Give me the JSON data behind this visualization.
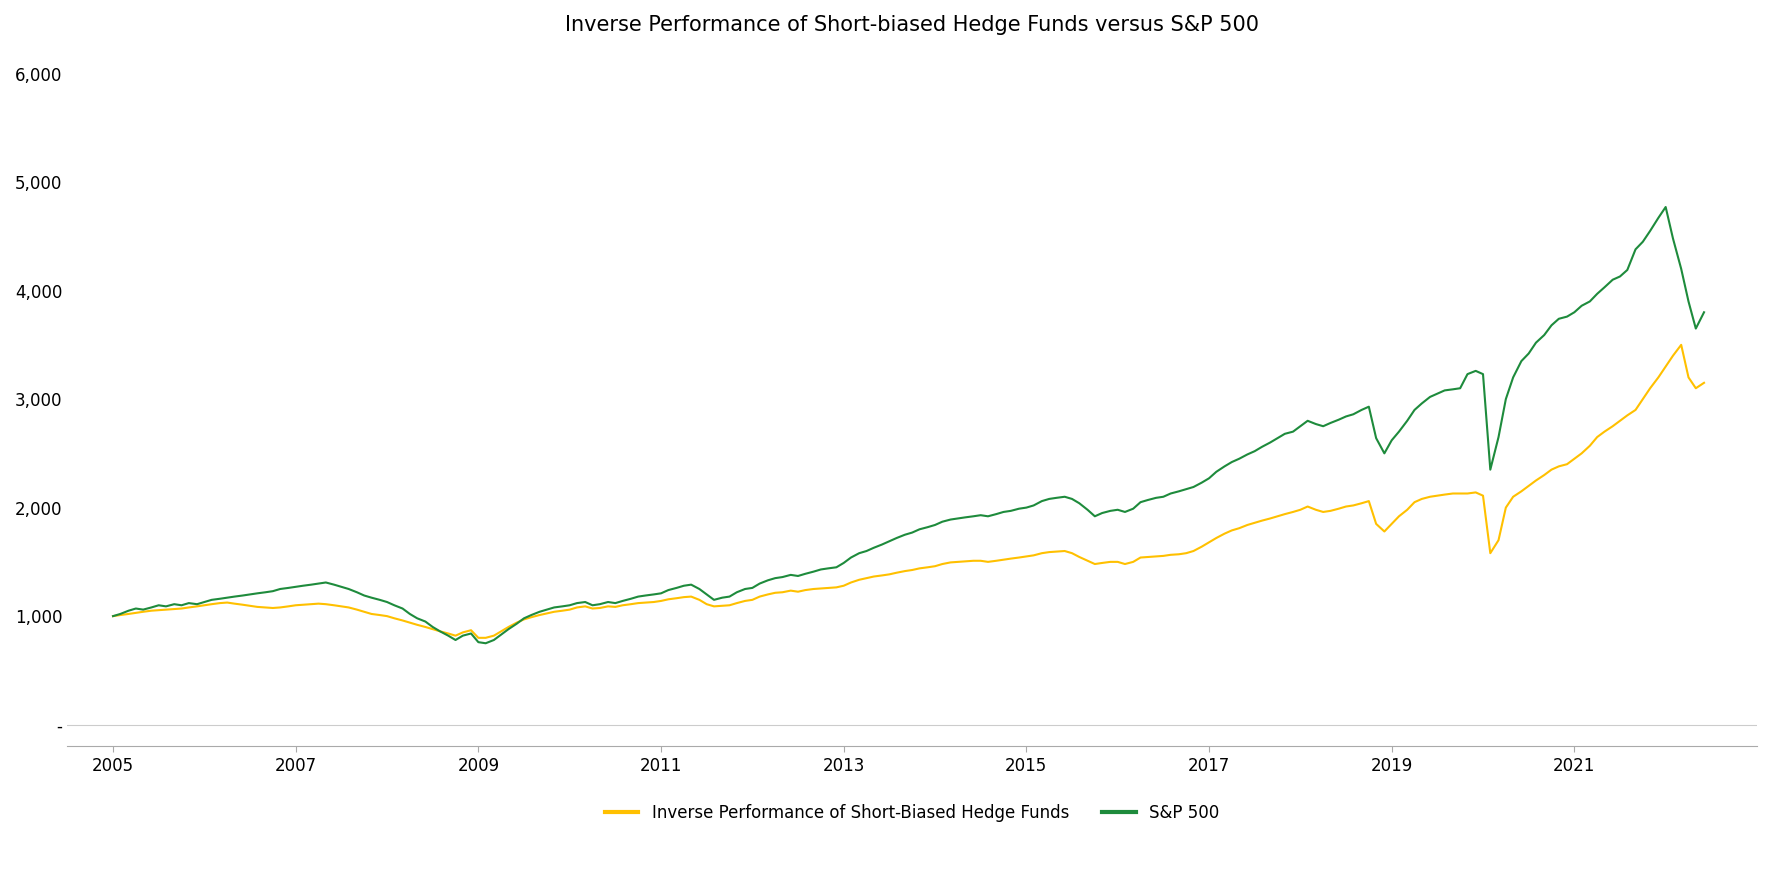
{
  "title": "Inverse Performance of Short-biased Hedge Funds versus S&P 500",
  "title_fontsize": 15,
  "line_color_hedge": "#FFC000",
  "line_color_sp500": "#1E8B3C",
  "background_color": "#FFFFFF",
  "ylim": [
    -200,
    6200
  ],
  "yticks": [
    0,
    1000,
    2000,
    3000,
    4000,
    5000,
    6000
  ],
  "ytick_labels": [
    "-",
    "1,000",
    "2,000",
    "3,000",
    "4,000",
    "5,000",
    "6,000"
  ],
  "xtick_years": [
    2005,
    2007,
    2009,
    2011,
    2013,
    2015,
    2017,
    2019,
    2021
  ],
  "legend_labels": [
    "Inverse Performance of Short-Biased Hedge Funds",
    "S&P 500"
  ],
  "sp500_x": [
    2005.0,
    2005.08,
    2005.17,
    2005.25,
    2005.33,
    2005.42,
    2005.5,
    2005.58,
    2005.67,
    2005.75,
    2005.83,
    2005.92,
    2006.0,
    2006.08,
    2006.17,
    2006.25,
    2006.33,
    2006.42,
    2006.5,
    2006.58,
    2006.67,
    2006.75,
    2006.83,
    2006.92,
    2007.0,
    2007.08,
    2007.17,
    2007.25,
    2007.33,
    2007.42,
    2007.5,
    2007.58,
    2007.67,
    2007.75,
    2007.83,
    2007.92,
    2008.0,
    2008.08,
    2008.17,
    2008.25,
    2008.33,
    2008.42,
    2008.5,
    2008.58,
    2008.67,
    2008.75,
    2008.83,
    2008.92,
    2009.0,
    2009.08,
    2009.17,
    2009.25,
    2009.33,
    2009.42,
    2009.5,
    2009.58,
    2009.67,
    2009.75,
    2009.83,
    2009.92,
    2010.0,
    2010.08,
    2010.17,
    2010.25,
    2010.33,
    2010.42,
    2010.5,
    2010.58,
    2010.67,
    2010.75,
    2010.83,
    2010.92,
    2011.0,
    2011.08,
    2011.17,
    2011.25,
    2011.33,
    2011.42,
    2011.5,
    2011.58,
    2011.67,
    2011.75,
    2011.83,
    2011.92,
    2012.0,
    2012.08,
    2012.17,
    2012.25,
    2012.33,
    2012.42,
    2012.5,
    2012.58,
    2012.67,
    2012.75,
    2012.83,
    2012.92,
    2013.0,
    2013.08,
    2013.17,
    2013.25,
    2013.33,
    2013.42,
    2013.5,
    2013.58,
    2013.67,
    2013.75,
    2013.83,
    2013.92,
    2014.0,
    2014.08,
    2014.17,
    2014.25,
    2014.33,
    2014.42,
    2014.5,
    2014.58,
    2014.67,
    2014.75,
    2014.83,
    2014.92,
    2015.0,
    2015.08,
    2015.17,
    2015.25,
    2015.33,
    2015.42,
    2015.5,
    2015.58,
    2015.67,
    2015.75,
    2015.83,
    2015.92,
    2016.0,
    2016.08,
    2016.17,
    2016.25,
    2016.33,
    2016.42,
    2016.5,
    2016.58,
    2016.67,
    2016.75,
    2016.83,
    2016.92,
    2017.0,
    2017.08,
    2017.17,
    2017.25,
    2017.33,
    2017.42,
    2017.5,
    2017.58,
    2017.67,
    2017.75,
    2017.83,
    2017.92,
    2018.0,
    2018.08,
    2018.17,
    2018.25,
    2018.33,
    2018.42,
    2018.5,
    2018.58,
    2018.67,
    2018.75,
    2018.83,
    2018.92,
    2019.0,
    2019.08,
    2019.17,
    2019.25,
    2019.33,
    2019.42,
    2019.5,
    2019.58,
    2019.67,
    2019.75,
    2019.83,
    2019.92,
    2020.0,
    2020.08,
    2020.17,
    2020.25,
    2020.33,
    2020.42,
    2020.5,
    2020.58,
    2020.67,
    2020.75,
    2020.83,
    2020.92,
    2021.0,
    2021.08,
    2021.17,
    2021.25,
    2021.33,
    2021.42,
    2021.5,
    2021.58,
    2021.67,
    2021.75,
    2021.83,
    2021.92,
    2022.0,
    2022.08,
    2022.17,
    2022.25,
    2022.33,
    2022.42
  ],
  "sp500_y": [
    1000,
    1020,
    1050,
    1070,
    1060,
    1080,
    1100,
    1090,
    1110,
    1100,
    1120,
    1110,
    1130,
    1150,
    1160,
    1170,
    1180,
    1190,
    1200,
    1210,
    1220,
    1230,
    1250,
    1260,
    1270,
    1280,
    1290,
    1300,
    1310,
    1290,
    1270,
    1250,
    1220,
    1190,
    1170,
    1150,
    1130,
    1100,
    1070,
    1020,
    980,
    950,
    900,
    860,
    820,
    780,
    820,
    840,
    760,
    750,
    780,
    830,
    880,
    930,
    980,
    1010,
    1040,
    1060,
    1080,
    1090,
    1100,
    1120,
    1130,
    1100,
    1110,
    1130,
    1120,
    1140,
    1160,
    1180,
    1190,
    1200,
    1210,
    1240,
    1260,
    1280,
    1290,
    1250,
    1200,
    1150,
    1170,
    1180,
    1220,
    1250,
    1260,
    1300,
    1330,
    1350,
    1360,
    1380,
    1370,
    1390,
    1410,
    1430,
    1440,
    1450,
    1490,
    1540,
    1580,
    1600,
    1630,
    1660,
    1690,
    1720,
    1750,
    1770,
    1800,
    1820,
    1840,
    1870,
    1890,
    1900,
    1910,
    1920,
    1930,
    1920,
    1940,
    1960,
    1970,
    1990,
    2000,
    2020,
    2060,
    2080,
    2090,
    2100,
    2080,
    2040,
    1980,
    1920,
    1950,
    1970,
    1980,
    1960,
    1990,
    2050,
    2070,
    2090,
    2100,
    2130,
    2150,
    2170,
    2190,
    2230,
    2270,
    2330,
    2380,
    2420,
    2450,
    2490,
    2520,
    2560,
    2600,
    2640,
    2680,
    2700,
    2750,
    2800,
    2770,
    2750,
    2780,
    2810,
    2840,
    2860,
    2900,
    2930,
    2640,
    2500,
    2620,
    2700,
    2800,
    2900,
    2960,
    3020,
    3050,
    3080,
    3090,
    3100,
    3230,
    3260,
    3230,
    2350,
    2650,
    3000,
    3200,
    3350,
    3420,
    3520,
    3590,
    3680,
    3740,
    3760,
    3800,
    3860,
    3900,
    3970,
    4030,
    4100,
    4130,
    4190,
    4380,
    4450,
    4550,
    4670,
    4770,
    4480,
    4200,
    3900,
    3650,
    3800
  ],
  "hedge_x": [
    2005.0,
    2005.08,
    2005.17,
    2005.25,
    2005.33,
    2005.42,
    2005.5,
    2005.58,
    2005.67,
    2005.75,
    2005.83,
    2005.92,
    2006.0,
    2006.08,
    2006.17,
    2006.25,
    2006.33,
    2006.42,
    2006.5,
    2006.58,
    2006.67,
    2006.75,
    2006.83,
    2006.92,
    2007.0,
    2007.08,
    2007.17,
    2007.25,
    2007.33,
    2007.42,
    2007.5,
    2007.58,
    2007.67,
    2007.75,
    2007.83,
    2007.92,
    2008.0,
    2008.08,
    2008.17,
    2008.25,
    2008.33,
    2008.42,
    2008.5,
    2008.58,
    2008.67,
    2008.75,
    2008.83,
    2008.92,
    2009.0,
    2009.08,
    2009.17,
    2009.25,
    2009.33,
    2009.42,
    2009.5,
    2009.58,
    2009.67,
    2009.75,
    2009.83,
    2009.92,
    2010.0,
    2010.08,
    2010.17,
    2010.25,
    2010.33,
    2010.42,
    2010.5,
    2010.58,
    2010.67,
    2010.75,
    2010.83,
    2010.92,
    2011.0,
    2011.08,
    2011.17,
    2011.25,
    2011.33,
    2011.42,
    2011.5,
    2011.58,
    2011.67,
    2011.75,
    2011.83,
    2011.92,
    2012.0,
    2012.08,
    2012.17,
    2012.25,
    2012.33,
    2012.42,
    2012.5,
    2012.58,
    2012.67,
    2012.75,
    2012.83,
    2012.92,
    2013.0,
    2013.08,
    2013.17,
    2013.25,
    2013.33,
    2013.42,
    2013.5,
    2013.58,
    2013.67,
    2013.75,
    2013.83,
    2013.92,
    2014.0,
    2014.08,
    2014.17,
    2014.25,
    2014.33,
    2014.42,
    2014.5,
    2014.58,
    2014.67,
    2014.75,
    2014.83,
    2014.92,
    2015.0,
    2015.08,
    2015.17,
    2015.25,
    2015.33,
    2015.42,
    2015.5,
    2015.58,
    2015.67,
    2015.75,
    2015.83,
    2015.92,
    2016.0,
    2016.08,
    2016.17,
    2016.25,
    2016.33,
    2016.42,
    2016.5,
    2016.58,
    2016.67,
    2016.75,
    2016.83,
    2016.92,
    2017.0,
    2017.08,
    2017.17,
    2017.25,
    2017.33,
    2017.42,
    2017.5,
    2017.58,
    2017.67,
    2017.75,
    2017.83,
    2017.92,
    2018.0,
    2018.08,
    2018.17,
    2018.25,
    2018.33,
    2018.42,
    2018.5,
    2018.58,
    2018.67,
    2018.75,
    2018.83,
    2018.92,
    2019.0,
    2019.08,
    2019.17,
    2019.25,
    2019.33,
    2019.42,
    2019.5,
    2019.58,
    2019.67,
    2019.75,
    2019.83,
    2019.92,
    2020.0,
    2020.08,
    2020.17,
    2020.25,
    2020.33,
    2020.42,
    2020.5,
    2020.58,
    2020.67,
    2020.75,
    2020.83,
    2020.92,
    2021.0,
    2021.08,
    2021.17,
    2021.25,
    2021.33,
    2021.42,
    2021.5,
    2021.58,
    2021.67,
    2021.75,
    2021.83,
    2021.92,
    2022.0,
    2022.08,
    2022.17,
    2022.25,
    2022.33,
    2022.42
  ],
  "hedge_y": [
    1000,
    1010,
    1020,
    1030,
    1040,
    1050,
    1055,
    1060,
    1065,
    1070,
    1080,
    1090,
    1100,
    1110,
    1120,
    1125,
    1115,
    1105,
    1095,
    1085,
    1080,
    1075,
    1080,
    1090,
    1100,
    1105,
    1110,
    1115,
    1110,
    1100,
    1090,
    1080,
    1060,
    1040,
    1020,
    1010,
    1000,
    980,
    960,
    940,
    920,
    900,
    880,
    860,
    840,
    820,
    850,
    870,
    800,
    800,
    820,
    860,
    900,
    940,
    970,
    990,
    1010,
    1025,
    1040,
    1050,
    1060,
    1080,
    1090,
    1070,
    1075,
    1090,
    1085,
    1100,
    1110,
    1120,
    1125,
    1130,
    1140,
    1155,
    1165,
    1175,
    1180,
    1150,
    1110,
    1090,
    1095,
    1100,
    1120,
    1140,
    1150,
    1180,
    1200,
    1215,
    1220,
    1235,
    1225,
    1240,
    1250,
    1255,
    1260,
    1265,
    1280,
    1310,
    1335,
    1350,
    1365,
    1375,
    1385,
    1400,
    1415,
    1425,
    1440,
    1450,
    1460,
    1480,
    1495,
    1500,
    1505,
    1510,
    1510,
    1500,
    1510,
    1520,
    1530,
    1540,
    1550,
    1560,
    1580,
    1590,
    1595,
    1600,
    1580,
    1545,
    1510,
    1480,
    1490,
    1500,
    1500,
    1480,
    1500,
    1540,
    1545,
    1550,
    1555,
    1565,
    1570,
    1580,
    1600,
    1640,
    1680,
    1720,
    1760,
    1790,
    1810,
    1840,
    1860,
    1880,
    1900,
    1920,
    1940,
    1960,
    1980,
    2010,
    1980,
    1960,
    1970,
    1990,
    2010,
    2020,
    2040,
    2060,
    1850,
    1780,
    1850,
    1920,
    1980,
    2050,
    2080,
    2100,
    2110,
    2120,
    2130,
    2130,
    2130,
    2140,
    2110,
    1580,
    1700,
    2000,
    2100,
    2150,
    2200,
    2250,
    2300,
    2350,
    2380,
    2400,
    2450,
    2500,
    2570,
    2650,
    2700,
    2750,
    2800,
    2850,
    2900,
    3000,
    3100,
    3200,
    3300,
    3400,
    3500,
    3200,
    3100,
    3150
  ]
}
